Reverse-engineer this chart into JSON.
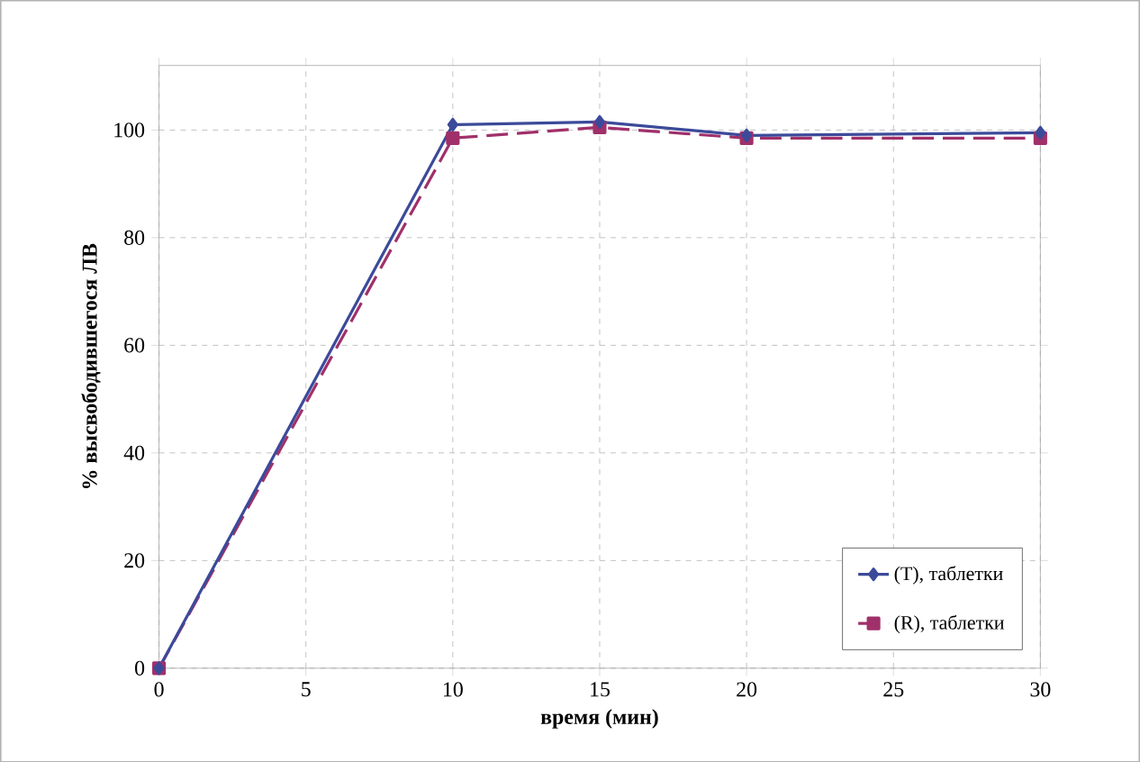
{
  "chart_data": {
    "type": "line",
    "xlabel": "время (мин)",
    "ylabel": "% высвободившегося ЛВ",
    "x": [
      0,
      10,
      15,
      20,
      30
    ],
    "xlim": [
      0,
      30
    ],
    "xticks": [
      0,
      5,
      10,
      15,
      20,
      25,
      30
    ],
    "ylim": [
      0,
      112
    ],
    "yticks": [
      0,
      20,
      40,
      60,
      80,
      100
    ],
    "grid": true,
    "legend": "bottom right",
    "series": [
      {
        "name": "(T), таблетки",
        "color": "#3c4a9a",
        "marker": "diamond",
        "line_style": "solid",
        "values": [
          0,
          101,
          101.5,
          99,
          99.5
        ]
      },
      {
        "name": "(R), таблетки",
        "color": "#a0306a",
        "marker": "square",
        "line_style": "dashed",
        "values": [
          0,
          98.5,
          100.5,
          98.5,
          98.5
        ]
      }
    ]
  }
}
